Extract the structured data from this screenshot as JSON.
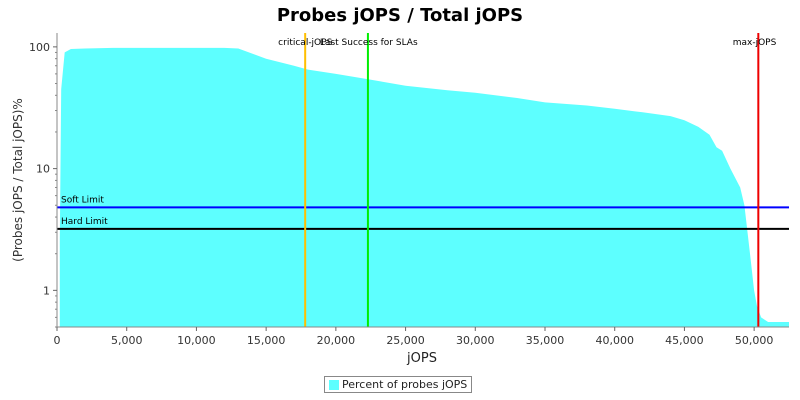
{
  "chart_data": {
    "type": "area",
    "title": "Probes jOPS / Total jOPS",
    "xlabel": "jOPS",
    "ylabel": "(Probes jOPS / Total jOPS)%",
    "xlim": [
      0,
      52500
    ],
    "ylim": [
      0.5,
      130
    ],
    "yscale": "log",
    "xticks": [
      0,
      5000,
      10000,
      15000,
      20000,
      25000,
      30000,
      35000,
      40000,
      45000,
      50000
    ],
    "xtick_labels": [
      "0",
      "5,000",
      "10,000",
      "15,000",
      "20,000",
      "25,000",
      "30,000",
      "35,000",
      "40,000",
      "45,000",
      "50,000"
    ],
    "yticks": [
      1,
      10,
      100
    ],
    "ytick_labels": [
      "1",
      "10",
      "100"
    ],
    "grid": false,
    "legend_position": "bottom",
    "series": [
      {
        "name": "Percent of probes jOPS",
        "color": "#5dffff",
        "x": [
          200,
          300,
          550,
          1000,
          2000,
          4000,
          6000,
          8000,
          10000,
          12000,
          13000,
          15000,
          17000,
          18000,
          20000,
          22000,
          25000,
          28000,
          30000,
          33000,
          35000,
          38000,
          40000,
          42000,
          44000,
          45000,
          46000,
          46800,
          47300,
          47700,
          48300,
          49000,
          49300,
          49700,
          50000,
          50200,
          50500,
          51000,
          52500
        ],
        "y": [
          2.5,
          45,
          90,
          96,
          97,
          98,
          98,
          98,
          98,
          98,
          97,
          80,
          70,
          65,
          60,
          55,
          48,
          44,
          42,
          38,
          35,
          33,
          31,
          29,
          27,
          25,
          22,
          19,
          15,
          14,
          10,
          7,
          5,
          2,
          1,
          0.75,
          0.6,
          0.55,
          0.55
        ]
      }
    ],
    "hlines": [
      {
        "name": "Soft Limit",
        "label": "Soft Limit",
        "y": 4.8,
        "color": "#0000ff"
      },
      {
        "name": "Hard Limit",
        "label": "Hard Limit",
        "y": 3.2,
        "color": "#000000"
      }
    ],
    "vlines": [
      {
        "name": "critical-jOPS",
        "label": "critical-jOPS",
        "x": 17800,
        "color": "#ffbf00"
      },
      {
        "name": "Last Success for SLAs",
        "label": "Last Success for SLAs",
        "x": 22300,
        "color": "#00ee00"
      },
      {
        "name": "max-jOPS",
        "label": "max-jOPS",
        "x": 50300,
        "color": "#ee0000"
      }
    ]
  }
}
